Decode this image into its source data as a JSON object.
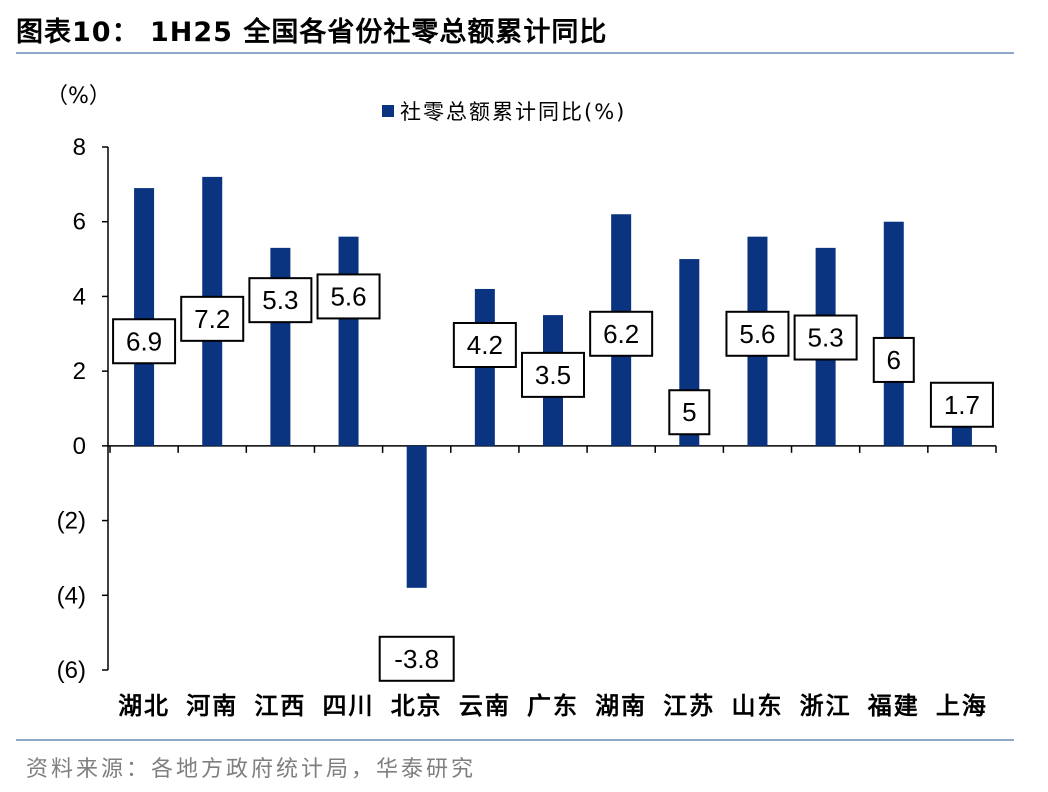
{
  "title": "图表10：  1H25 全国各省份社零总额累计同比",
  "source": "资料来源：各地方政府统计局，华泰研究",
  "colors": {
    "bar": "#0a3380",
    "rule": "#8fa8c8"
  },
  "chart_data": {
    "type": "bar",
    "unit_label": "（%）",
    "categories": [
      "湖北",
      "河南",
      "江西",
      "四川",
      "北京",
      "云南",
      "广东",
      "湖南",
      "江苏",
      "山东",
      "浙江",
      "福建",
      "上海"
    ],
    "series": [
      {
        "name": "社零总额累计同比(%)",
        "values": [
          6.9,
          7.2,
          5.3,
          5.6,
          -3.8,
          4.2,
          3.5,
          6.2,
          5,
          5.6,
          5.3,
          6,
          1.7
        ]
      }
    ],
    "data_labels": [
      "6.9",
      "7.2",
      "5.3",
      "5.6",
      "-3.8",
      "4.2",
      "3.5",
      "6.2",
      "5",
      "5.6",
      "5.3",
      "6",
      "1.7"
    ],
    "ylim": [
      -6,
      8
    ],
    "yticks": [
      8,
      6,
      4,
      2,
      0,
      -2,
      -4,
      -6
    ],
    "ytick_labels": [
      "8",
      "6",
      "4",
      "2",
      "0",
      "(2)",
      "(4)",
      "(6)"
    ],
    "label_offsets": [
      -4.1,
      -3.8,
      -1.4,
      -1.6,
      -1.9,
      -1.5,
      -1.6,
      -3.2,
      -4.1,
      -2.6,
      -2.4,
      -3.7,
      -0.6
    ],
    "legend_position": "top-center",
    "grid": false
  }
}
